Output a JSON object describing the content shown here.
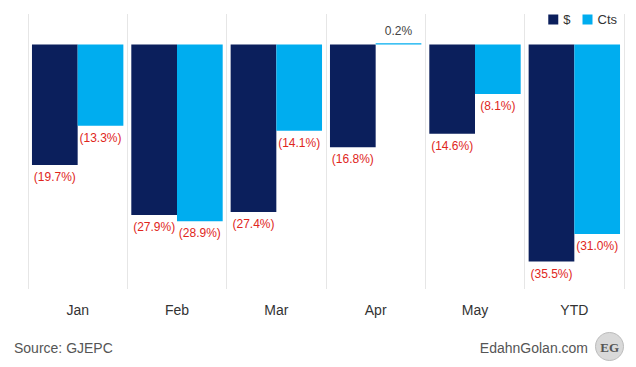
{
  "chart_data": {
    "type": "bar",
    "categories": [
      "Jan",
      "Feb",
      "Mar",
      "Apr",
      "May",
      "YTD"
    ],
    "series": [
      {
        "name": "$",
        "color": "#0b1f5c",
        "values": [
          -19.7,
          -27.9,
          -27.4,
          -16.8,
          -14.6,
          -35.5
        ],
        "value_labels": [
          "(19.7%)",
          "(27.9%)",
          "(27.4%)",
          "(16.8%)",
          "(14.6%)",
          "(35.5%)"
        ]
      },
      {
        "name": "Cts",
        "color": "#00adef",
        "values": [
          -13.3,
          -28.9,
          -14.1,
          0.2,
          -8.1,
          -31.0
        ],
        "value_labels": [
          "(13.3%)",
          "(28.9%)",
          "(14.1%)",
          "0.2%",
          "(8.1%)",
          "(31.0%)"
        ]
      }
    ],
    "ylim": [
      -40,
      5
    ],
    "yticks": [
      -40,
      -35,
      -30,
      -25,
      -20,
      -15,
      -10,
      -5,
      0,
      5
    ],
    "tick_labels": "x",
    "legend": "top-right",
    "data_labels": true,
    "source": "Source: GJEPC",
    "credit": "EdahnGolan.com",
    "logo": "EG"
  }
}
